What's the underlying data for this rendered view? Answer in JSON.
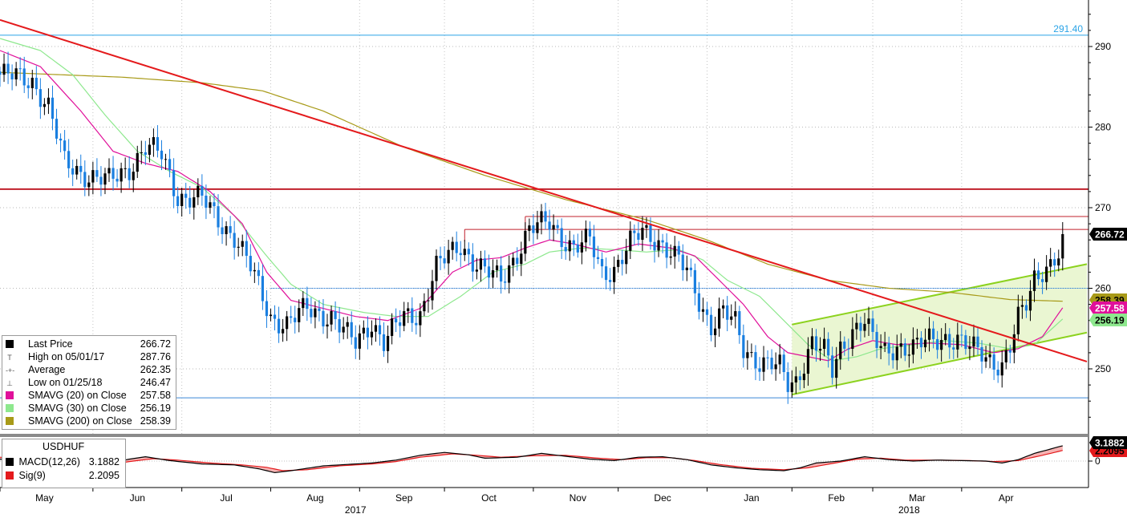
{
  "instrument": "USDHUF",
  "colors": {
    "up": "#000000",
    "down": "#1a7fe0",
    "sma20": "#e0109a",
    "sma30": "#8ee88e",
    "sma200": "#a89a18",
    "trend": "#e41a1c",
    "resistance": "#c0202c",
    "support_blue": "#3a86d8",
    "channel": "#8cd21e",
    "channel_fill": "#eaf6d2",
    "macd": "#000000",
    "signal": "#e41a1c",
    "macd_fill": "#f4a0a0"
  },
  "legend": {
    "items": [
      {
        "label": "Last Price",
        "value": "266.72",
        "color": "#000000",
        "glyph": ""
      },
      {
        "label": "High on 05/01/17",
        "value": "287.76",
        "color": "",
        "glyph": "T"
      },
      {
        "label": "Average",
        "value": "262.35",
        "color": "",
        "glyph": "-+-"
      },
      {
        "label": "Low on 01/25/18",
        "value": "246.47",
        "color": "",
        "glyph": "⊥"
      },
      {
        "label": "SMAVG (20) on Close",
        "value": "257.58",
        "color": "#e0109a",
        "glyph": ""
      },
      {
        "label": "SMAVG (30) on Close",
        "value": "256.19",
        "color": "#8ee88e",
        "glyph": ""
      },
      {
        "label": "SMAVG (200) on Close",
        "value": "258.39",
        "color": "#a89a18",
        "glyph": ""
      }
    ]
  },
  "macd_legend": {
    "title": "USDHUF",
    "items": [
      {
        "label": "MACD(12,26)",
        "value": "3.1882",
        "color": "#000000"
      },
      {
        "label": "Sig(9)",
        "value": "2.2095",
        "color": "#e41a1c"
      }
    ]
  },
  "price_tags": [
    {
      "text": "266.72",
      "value": 266.72,
      "bg": "#000000",
      "fg": "#ffffff"
    },
    {
      "text": "258.39",
      "value": 258.39,
      "bg": "#a89a18",
      "fg": "#000000"
    },
    {
      "text": "257.58",
      "value": 257.58,
      "bg": "#e0109a",
      "fg": "#ffffff"
    },
    {
      "text": "256.19",
      "value": 256.19,
      "bg": "#8ee88e",
      "fg": "#000000"
    }
  ],
  "macd_tags": [
    {
      "text": "3.1882",
      "value": 3.1882,
      "bg": "#000000",
      "fg": "#ffffff"
    },
    {
      "text": "2.2095",
      "value": 2.2095,
      "bg": "#e41a1c",
      "fg": "#000000"
    }
  ],
  "level_label": "291.40",
  "chart_data": {
    "type": "candlestick",
    "title": "USDHUF",
    "ylim": [
      243,
      296
    ],
    "yticks": [
      250,
      260,
      270,
      280,
      290
    ],
    "macd_ylim": [
      -3.6,
      5.4
    ],
    "macd_yticks": [
      0
    ],
    "x_range": [
      0,
      269
    ],
    "month_labels": [
      {
        "label": "May",
        "day": 11
      },
      {
        "label": "Jun",
        "day": 34
      },
      {
        "label": "Jul",
        "day": 56
      },
      {
        "label": "Aug",
        "day": 78
      },
      {
        "label": "Sep",
        "day": 100
      },
      {
        "label": "Oct",
        "day": 121
      },
      {
        "label": "Nov",
        "day": 143
      },
      {
        "label": "Dec",
        "day": 164
      },
      {
        "label": "Jan",
        "day": 186
      },
      {
        "label": "Feb",
        "day": 207
      },
      {
        "label": "Mar",
        "day": 227
      },
      {
        "label": "Apr",
        "day": 249
      }
    ],
    "year_labels": [
      {
        "label": "2017",
        "day": 88
      },
      {
        "label": "2018",
        "day": 225
      }
    ],
    "close_anchors": [
      [
        0,
        286.5
      ],
      [
        8,
        285.8
      ],
      [
        12,
        282.5
      ],
      [
        16,
        275.5
      ],
      [
        22,
        274.0
      ],
      [
        27,
        273.2
      ],
      [
        32,
        275.0
      ],
      [
        36,
        277.5
      ],
      [
        40,
        276.5
      ],
      [
        44,
        271.5
      ],
      [
        50,
        271.0
      ],
      [
        54,
        268.5
      ],
      [
        58,
        266.5
      ],
      [
        62,
        262.5
      ],
      [
        67,
        256.5
      ],
      [
        71,
        255.5
      ],
      [
        76,
        257.5
      ],
      [
        82,
        256.5
      ],
      [
        86,
        254.0
      ],
      [
        88,
        253.2
      ],
      [
        92,
        256.0
      ],
      [
        95,
        253.2
      ],
      [
        100,
        256.5
      ],
      [
        104,
        257.0
      ],
      [
        108,
        262.5
      ],
      [
        111,
        264.0
      ],
      [
        114,
        265.5
      ],
      [
        117,
        263.5
      ],
      [
        120,
        262.0
      ],
      [
        124,
        261.0
      ],
      [
        128,
        264.5
      ],
      [
        131,
        267.2
      ],
      [
        136,
        268.2
      ],
      [
        139,
        266.5
      ],
      [
        142,
        265.0
      ],
      [
        146,
        265.8
      ],
      [
        149,
        262.0
      ],
      [
        152,
        262.5
      ],
      [
        156,
        265.5
      ],
      [
        159,
        267.0
      ],
      [
        163,
        266.0
      ],
      [
        166,
        264.5
      ],
      [
        170,
        262.0
      ],
      [
        173,
        258.5
      ],
      [
        176,
        255.5
      ],
      [
        179,
        257.0
      ],
      [
        182,
        255.5
      ],
      [
        184,
        252.5
      ],
      [
        188,
        251.0
      ],
      [
        191,
        250.5
      ],
      [
        193,
        250.0
      ],
      [
        195,
        248.0
      ],
      [
        197,
        248.5
      ],
      [
        199,
        251.0
      ],
      [
        201,
        253.5
      ],
      [
        204,
        252.0
      ],
      [
        206,
        249.5
      ],
      [
        208,
        252.5
      ],
      [
        211,
        255.0
      ],
      [
        214,
        256.0
      ],
      [
        216,
        253.5
      ],
      [
        219,
        252.0
      ],
      [
        222,
        253.0
      ],
      [
        226,
        252.5
      ],
      [
        230,
        253.5
      ],
      [
        234,
        254.0
      ],
      [
        237,
        253.5
      ],
      [
        240,
        252.5
      ],
      [
        243,
        252.0
      ],
      [
        246,
        251.0
      ],
      [
        248,
        250.5
      ],
      [
        250,
        252.5
      ],
      [
        252,
        256.0
      ],
      [
        254,
        258.0
      ],
      [
        256,
        261.5
      ],
      [
        258,
        262.5
      ],
      [
        260,
        263.0
      ],
      [
        262,
        264.0
      ],
      [
        263,
        266.72
      ]
    ],
    "last_day": 263,
    "series": [
      {
        "name": "Last Price",
        "last": 266.72
      },
      {
        "name": "SMAVG (20) on Close",
        "last": 257.58
      },
      {
        "name": "SMAVG (30) on Close",
        "last": 256.19
      },
      {
        "name": "SMAVG (200) on Close",
        "last": 258.39
      }
    ],
    "sma200_anchors": [
      [
        0,
        286.8
      ],
      [
        30,
        286.2
      ],
      [
        50,
        285.5
      ],
      [
        65,
        284.5
      ],
      [
        80,
        282.0
      ],
      [
        100,
        277.5
      ],
      [
        120,
        274.0
      ],
      [
        140,
        271.0
      ],
      [
        160,
        268.5
      ],
      [
        175,
        266.0
      ],
      [
        190,
        263.0
      ],
      [
        205,
        261.0
      ],
      [
        220,
        260.0
      ],
      [
        235,
        259.5
      ],
      [
        250,
        258.6
      ],
      [
        263,
        258.39
      ]
    ],
    "ma20_anchors": [
      [
        0,
        289.5
      ],
      [
        10,
        287.5
      ],
      [
        20,
        282.0
      ],
      [
        28,
        277.0
      ],
      [
        36,
        275.5
      ],
      [
        44,
        274.5
      ],
      [
        52,
        272.0
      ],
      [
        60,
        268.0
      ],
      [
        66,
        262.0
      ],
      [
        72,
        258.5
      ],
      [
        80,
        257.5
      ],
      [
        88,
        256.5
      ],
      [
        96,
        256.0
      ],
      [
        104,
        257.5
      ],
      [
        112,
        262.0
      ],
      [
        118,
        263.5
      ],
      [
        124,
        263.8
      ],
      [
        130,
        265.0
      ],
      [
        136,
        266.0
      ],
      [
        142,
        265.5
      ],
      [
        150,
        264.5
      ],
      [
        158,
        265.5
      ],
      [
        166,
        265.0
      ],
      [
        172,
        264.0
      ],
      [
        178,
        261.0
      ],
      [
        184,
        258.0
      ],
      [
        190,
        254.0
      ],
      [
        195,
        252.0
      ],
      [
        200,
        251.5
      ],
      [
        205,
        251.0
      ],
      [
        210,
        252.5
      ],
      [
        216,
        253.5
      ],
      [
        222,
        253.0
      ],
      [
        230,
        253.2
      ],
      [
        238,
        253.0
      ],
      [
        246,
        252.0
      ],
      [
        252,
        252.5
      ],
      [
        258,
        254.0
      ],
      [
        263,
        257.58
      ]
    ],
    "ma30_anchors": [
      [
        0,
        291.0
      ],
      [
        10,
        289.5
      ],
      [
        18,
        286.5
      ],
      [
        26,
        281.5
      ],
      [
        34,
        277.0
      ],
      [
        42,
        274.5
      ],
      [
        50,
        272.5
      ],
      [
        58,
        269.0
      ],
      [
        66,
        264.0
      ],
      [
        72,
        260.5
      ],
      [
        80,
        258.0
      ],
      [
        90,
        257.0
      ],
      [
        98,
        256.5
      ],
      [
        106,
        256.5
      ],
      [
        114,
        259.0
      ],
      [
        122,
        262.0
      ],
      [
        130,
        263.0
      ],
      [
        136,
        264.5
      ],
      [
        144,
        265.0
      ],
      [
        152,
        264.8
      ],
      [
        160,
        264.5
      ],
      [
        168,
        264.8
      ],
      [
        174,
        263.5
      ],
      [
        180,
        261.0
      ],
      [
        188,
        259.0
      ],
      [
        194,
        256.0
      ],
      [
        200,
        253.0
      ],
      [
        206,
        251.0
      ],
      [
        212,
        251.5
      ],
      [
        218,
        252.5
      ],
      [
        226,
        253.0
      ],
      [
        234,
        253.5
      ],
      [
        242,
        253.2
      ],
      [
        250,
        252.5
      ],
      [
        256,
        253.0
      ],
      [
        263,
        256.19
      ]
    ],
    "macd_anchors": [
      [
        0,
        0.4
      ],
      [
        10,
        -0.6
      ],
      [
        18,
        -1.6
      ],
      [
        24,
        -1.0
      ],
      [
        32,
        0.4
      ],
      [
        36,
        0.9
      ],
      [
        42,
        0.1
      ],
      [
        50,
        -0.6
      ],
      [
        58,
        -0.8
      ],
      [
        64,
        -1.6
      ],
      [
        68,
        -2.4
      ],
      [
        72,
        -2.0
      ],
      [
        80,
        -1.0
      ],
      [
        86,
        -0.7
      ],
      [
        92,
        -0.4
      ],
      [
        98,
        0.2
      ],
      [
        104,
        1.2
      ],
      [
        110,
        1.8
      ],
      [
        116,
        1.3
      ],
      [
        120,
        0.6
      ],
      [
        128,
        0.8
      ],
      [
        134,
        1.6
      ],
      [
        140,
        1.0
      ],
      [
        146,
        0.4
      ],
      [
        152,
        0.1
      ],
      [
        158,
        0.8
      ],
      [
        164,
        0.9
      ],
      [
        170,
        0.3
      ],
      [
        176,
        -0.8
      ],
      [
        182,
        -1.4
      ],
      [
        188,
        -1.8
      ],
      [
        194,
        -2.0
      ],
      [
        198,
        -1.4
      ],
      [
        202,
        -0.4
      ],
      [
        208,
        0.0
      ],
      [
        214,
        0.9
      ],
      [
        220,
        0.3
      ],
      [
        226,
        0.0
      ],
      [
        232,
        0.2
      ],
      [
        238,
        0.1
      ],
      [
        244,
        0.0
      ],
      [
        248,
        -0.4
      ],
      [
        252,
        0.3
      ],
      [
        256,
        1.6
      ],
      [
        260,
        2.5
      ],
      [
        263,
        3.1882
      ]
    ],
    "signal_anchors": [
      [
        0,
        0.8
      ],
      [
        10,
        0.2
      ],
      [
        18,
        -1.2
      ],
      [
        24,
        -1.2
      ],
      [
        32,
        -0.1
      ],
      [
        38,
        0.5
      ],
      [
        44,
        0.2
      ],
      [
        52,
        -0.4
      ],
      [
        60,
        -0.8
      ],
      [
        66,
        -1.3
      ],
      [
        70,
        -2.0
      ],
      [
        76,
        -1.8
      ],
      [
        84,
        -1.0
      ],
      [
        92,
        -0.6
      ],
      [
        98,
        -0.1
      ],
      [
        104,
        0.8
      ],
      [
        112,
        1.5
      ],
      [
        118,
        1.2
      ],
      [
        124,
        0.8
      ],
      [
        132,
        1.1
      ],
      [
        140,
        1.2
      ],
      [
        148,
        0.6
      ],
      [
        154,
        0.3
      ],
      [
        160,
        0.7
      ],
      [
        166,
        0.7
      ],
      [
        172,
        0.1
      ],
      [
        178,
        -0.7
      ],
      [
        186,
        -1.5
      ],
      [
        194,
        -1.8
      ],
      [
        200,
        -1.4
      ],
      [
        206,
        -0.5
      ],
      [
        212,
        0.4
      ],
      [
        218,
        0.6
      ],
      [
        224,
        0.2
      ],
      [
        232,
        0.2
      ],
      [
        240,
        0.1
      ],
      [
        246,
        -0.1
      ],
      [
        252,
        0.1
      ],
      [
        258,
        1.2
      ],
      [
        263,
        2.2095
      ]
    ],
    "horizontal_lines": [
      {
        "name": "top-level",
        "value": 291.4,
        "color": "#2aa3e6"
      },
      {
        "name": "resistance",
        "value": 272.3,
        "color": "#c0202c"
      },
      {
        "name": "resistance-2",
        "value": 268.9,
        "color": "#c0202c"
      },
      {
        "name": "resistance-3",
        "value": 267.3,
        "color": "#c0202c"
      },
      {
        "name": "support-260",
        "value": 260.0,
        "color": "#3a86d8"
      },
      {
        "name": "low-level",
        "value": 246.4,
        "color": "#3a86d8"
      }
    ],
    "trend_line": {
      "points": [
        [
          0,
          293.3
        ],
        [
          269,
          250.9
        ]
      ]
    },
    "channel": {
      "lower": [
        [
          196,
          246.8
        ],
        [
          269,
          254.5
        ]
      ],
      "upper": [
        [
          196,
          255.5
        ],
        [
          269,
          263.0
        ]
      ]
    }
  }
}
